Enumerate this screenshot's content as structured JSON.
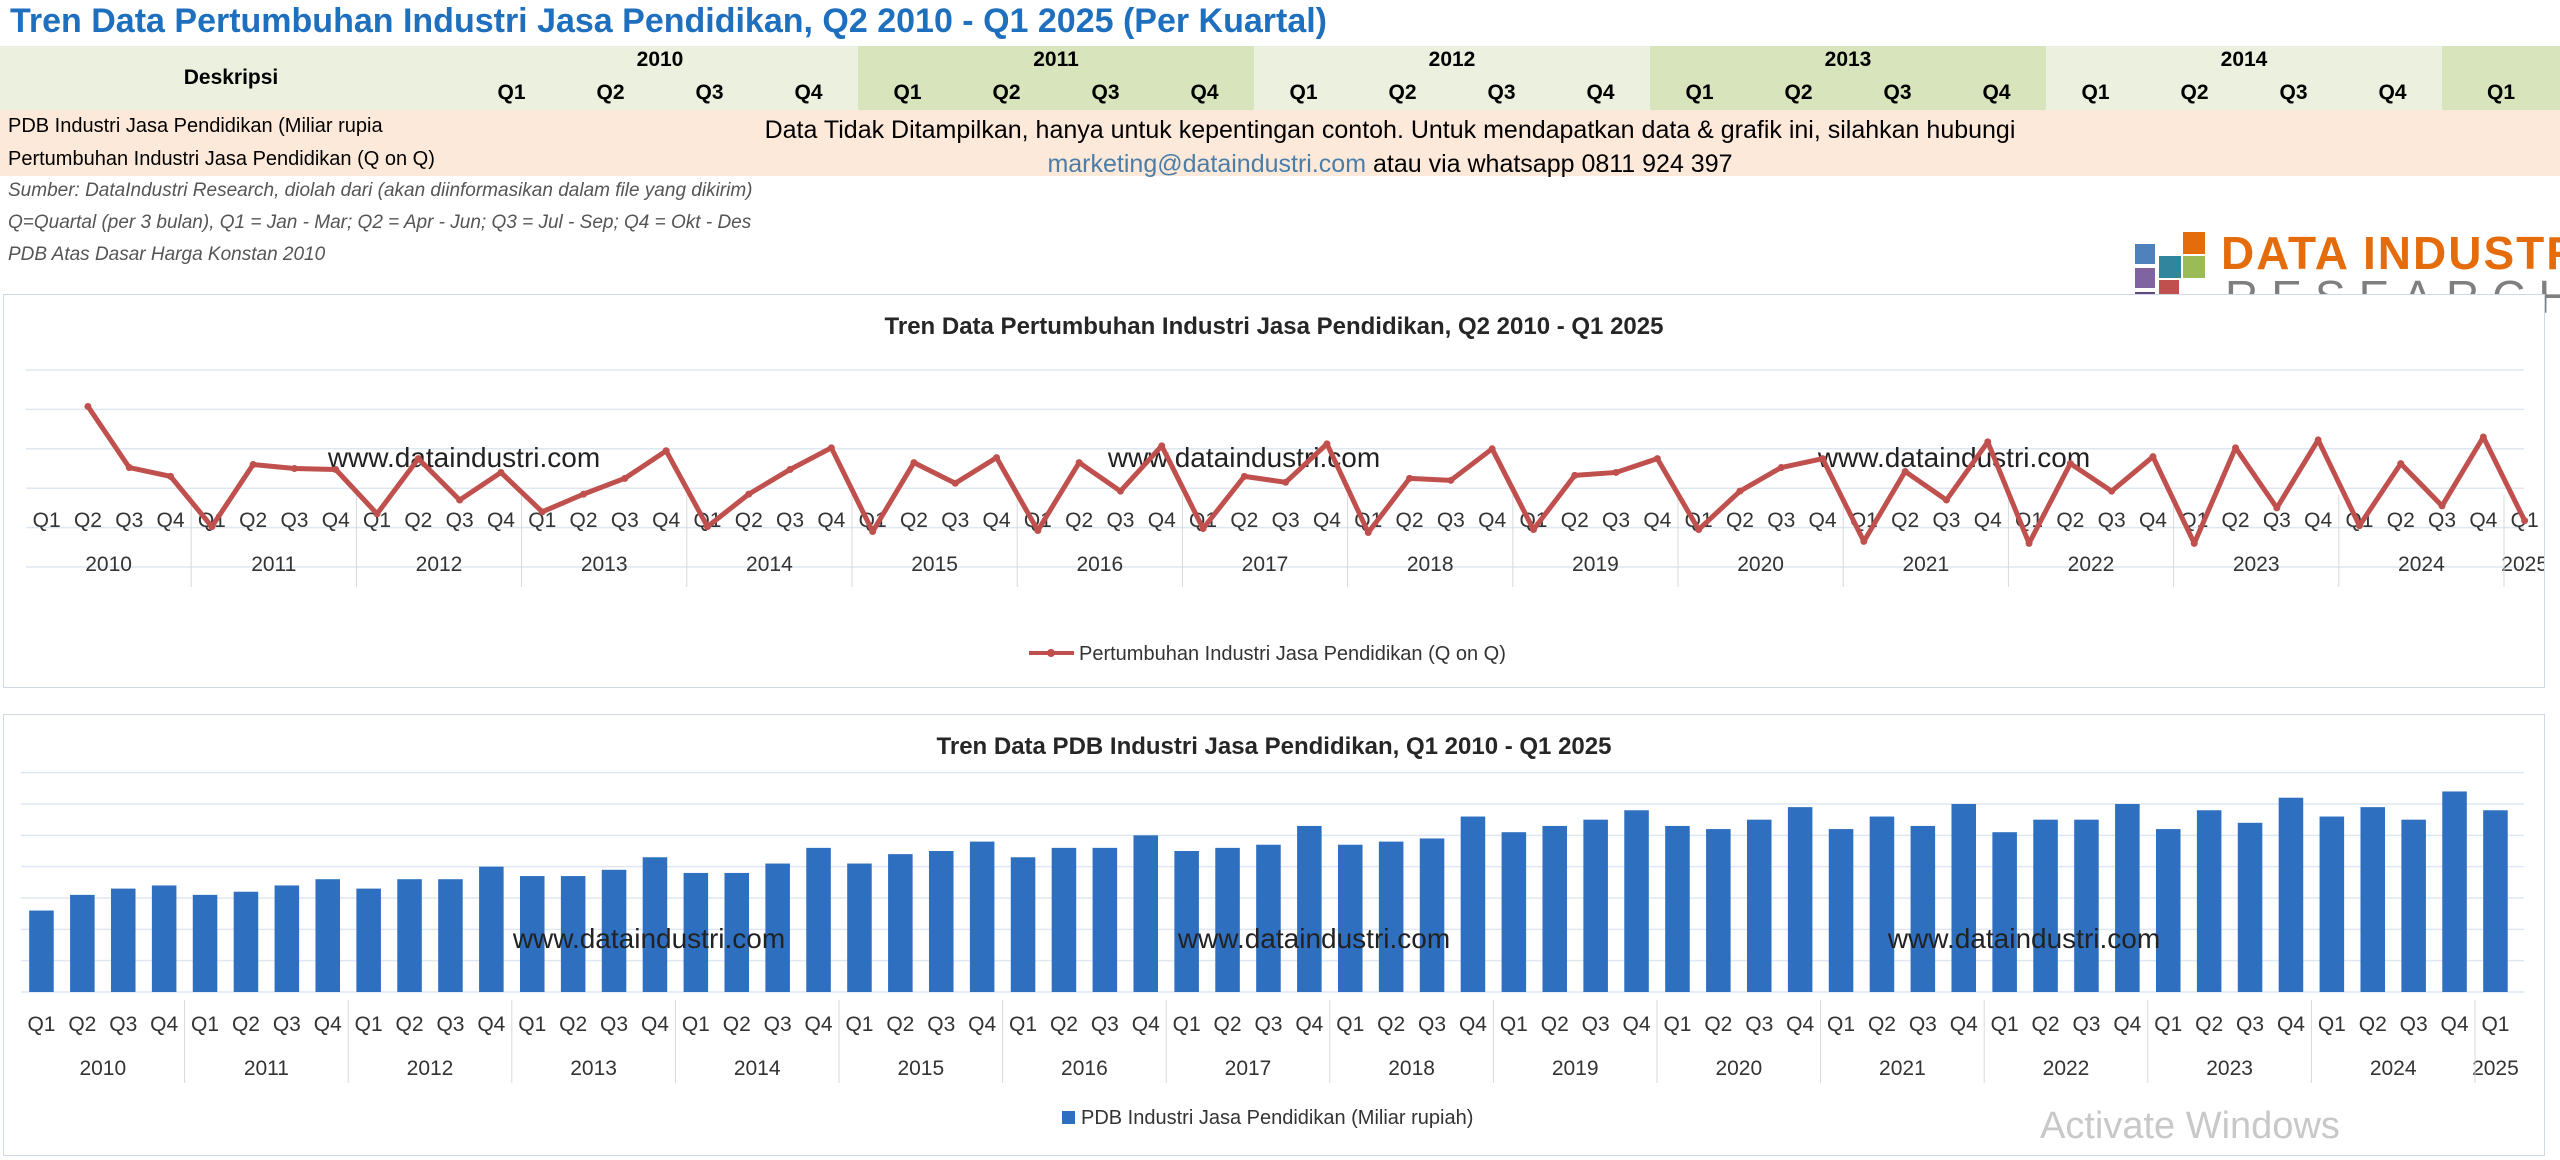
{
  "page_title": "Tren Data Pertumbuhan Industri Jasa Pendidikan, Q2 2010 - Q1 2025 (Per Kuartal)",
  "table_header": {
    "description_label": "Deskripsi",
    "years": [
      "2010",
      "2011",
      "2012",
      "2013",
      "2014"
    ],
    "quarters": [
      "Q1",
      "Q2",
      "Q3",
      "Q4"
    ],
    "extra_quarter": "Q1"
  },
  "table_rows": {
    "row1_label": "PDB Industri Jasa Pendidikan (Miliar rupia",
    "row2_label": "Pertumbuhan Industri Jasa Pendidikan (Q on Q)"
  },
  "notice": {
    "line1": "Data Tidak Ditampilkan, hanya untuk kepentingan contoh. Untuk mendapatkan data & grafik  ini, silahkan hubungi",
    "email": "marketing@dataindustri.com",
    "line2_rest": " atau via whatsapp 0811 924 397"
  },
  "notes": {
    "source": "Sumber: DataIndustri Research, diolah dari (akan diinformasikan dalam file yang dikirim)",
    "quarter_def": "Q=Quartal (per 3 bulan), Q1 = Jan - Mar; Q2 = Apr - Jun; Q3 = Jul - Sep; Q4 = Okt - Des",
    "basis": "PDB Atas Dasar Harga Konstan 2010"
  },
  "logo": {
    "line1": "DATA INDUSTRI",
    "line2": "RESEARCH"
  },
  "watermark": "www.dataindustri.com",
  "os_overlay": "Activate Windows",
  "colors": {
    "title_blue": "#1f6fbf",
    "line_red": "#c0504d",
    "bar_blue": "#2e6fc0",
    "header_green_light": "#ebf1de",
    "header_green_dark": "#d8e4bc",
    "row_peach": "#fde9d9"
  },
  "chart_data": [
    {
      "type": "line",
      "title": "Tren Data Pertumbuhan Industri Jasa Pendidikan, Q2 2010 - Q1 2025",
      "legend": "Pertumbuhan Industri Jasa Pendidikan (Q on Q)",
      "legend_position": "bottom",
      "grid": true,
      "years": [
        "2010",
        "2011",
        "2012",
        "2013",
        "2014",
        "2015",
        "2016",
        "2017",
        "2018",
        "2019",
        "2020",
        "2021",
        "2022",
        "2023",
        "2024",
        "2025"
      ],
      "quarters": [
        "Q1",
        "Q2",
        "Q3",
        "Q4"
      ],
      "start_quarter_index": 1,
      "values": [
        8.3,
        2.1,
        1.2,
        -3.9,
        2.4,
        2.0,
        1.9,
        -2.6,
        3.0,
        -1.2,
        1.6,
        -2.4,
        -0.6,
        1.0,
        3.8,
        -3.9,
        -0.6,
        1.9,
        4.1,
        -4.4,
        2.6,
        0.5,
        3.1,
        -4.3,
        2.6,
        -0.3,
        4.3,
        -4.1,
        1.2,
        0.6,
        4.5,
        -4.5,
        1.0,
        0.8,
        4.0,
        -4.2,
        1.3,
        1.6,
        3.0,
        -4.2,
        -0.3,
        2.1,
        3.0,
        -5.4,
        1.7,
        -1.2,
        4.7,
        -5.6,
        2.5,
        -0.3,
        3.2,
        -5.6,
        4.1,
        -2.0,
        4.9,
        -3.8,
        2.5,
        -1.8,
        5.2,
        -3.3
      ],
      "ylim": [
        -8,
        12
      ]
    },
    {
      "type": "bar",
      "title": "Tren Data PDB Industri Jasa Pendidikan, Q1 2010 - Q1 2025",
      "legend": "PDB Industri Jasa Pendidikan (Miliar rupiah)",
      "legend_position": "bottom",
      "grid": true,
      "years": [
        "2010",
        "2011",
        "2012",
        "2013",
        "2014",
        "2015",
        "2016",
        "2017",
        "2018",
        "2019",
        "2020",
        "2021",
        "2022",
        "2023",
        "2024",
        "2025"
      ],
      "quarters": [
        "Q1",
        "Q2",
        "Q3",
        "Q4"
      ],
      "start_quarter_index": 0,
      "values": [
        26,
        31,
        33,
        34,
        31,
        32,
        34,
        36,
        33,
        36,
        36,
        40,
        37,
        37,
        39,
        43,
        38,
        38,
        41,
        46,
        41,
        44,
        45,
        48,
        43,
        46,
        46,
        50,
        45,
        46,
        47,
        53,
        47,
        48,
        49,
        56,
        51,
        53,
        55,
        58,
        53,
        52,
        55,
        59,
        52,
        56,
        53,
        60,
        51,
        55,
        55,
        60,
        52,
        58,
        54,
        62,
        56,
        59,
        55,
        64,
        58
      ],
      "ylim": [
        0,
        75
      ]
    }
  ]
}
